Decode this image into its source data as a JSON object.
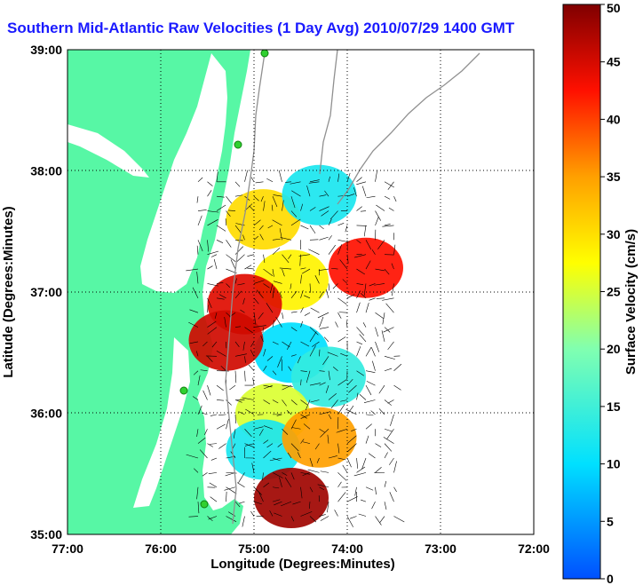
{
  "title": "Southern Mid-Atlantic Raw Velocities (1 Day Avg) 2010/07/29 1400 GMT",
  "colors": {
    "land": "#57f7a5",
    "water": "#ffffff",
    "title": "#1a1aff"
  },
  "chart_data": {
    "type": "heatmap",
    "title": "Southern Mid-Atlantic Raw Velocities (1 Day Avg) 2010/07/29 1400 GMT",
    "xlabel": "Longitude (Degrees:Minutes)",
    "ylabel": "Latitude (Degrees:Minutes)",
    "xlim": [
      -77,
      -72
    ],
    "ylim": [
      35,
      39
    ],
    "x_ticks": [
      "77:00",
      "76:00",
      "75:00",
      "74:00",
      "73:00",
      "72:00"
    ],
    "y_ticks": [
      "35:00",
      "36:00",
      "37:00",
      "38:00",
      "39:00"
    ],
    "grid": true,
    "colorbar": {
      "label": "Surface Velocity (cm/s)",
      "min": 0,
      "max": 50,
      "ticks": [
        "0",
        "5",
        "10",
        "15",
        "20",
        "25",
        "30",
        "35",
        "40",
        "45",
        "50"
      ]
    },
    "field_regions": [
      {
        "lon": -74.9,
        "lat": 37.6,
        "velocity": 30
      },
      {
        "lon": -74.3,
        "lat": 37.8,
        "velocity": 12
      },
      {
        "lon": -73.8,
        "lat": 37.2,
        "velocity": 42
      },
      {
        "lon": -74.6,
        "lat": 37.1,
        "velocity": 28
      },
      {
        "lon": -75.1,
        "lat": 36.9,
        "velocity": 44
      },
      {
        "lon": -74.6,
        "lat": 36.5,
        "velocity": 10
      },
      {
        "lon": -74.2,
        "lat": 36.3,
        "velocity": 14
      },
      {
        "lon": -75.3,
        "lat": 36.6,
        "velocity": 45
      },
      {
        "lon": -74.8,
        "lat": 36.0,
        "velocity": 25
      },
      {
        "lon": -74.9,
        "lat": 35.7,
        "velocity": 12
      },
      {
        "lon": -74.3,
        "lat": 35.8,
        "velocity": 35
      },
      {
        "lon": -74.6,
        "lat": 35.3,
        "velocity": 48
      }
    ]
  }
}
